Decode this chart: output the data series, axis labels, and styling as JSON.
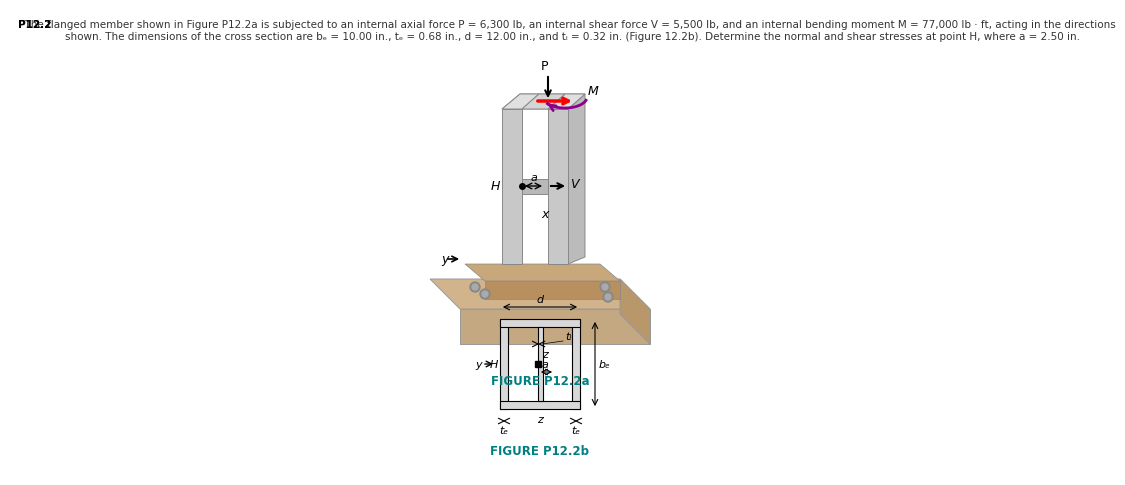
{
  "title_bold": "P12.2",
  "title_text": "  The flanged member shown in Figure P12.2a is subjected to an internal axial force P = 6,300 lb, an internal shear force V = 5,500 lb, and an internal bending moment M = 77,000 lb · ft, acting in the directions",
  "title_line2": "shown. The dimensions of the cross section are bₑ = 10.00 in., tₑ = 0.68 in., d = 12.00 in., and tₗ = 0.32 in. (Figure 12.2b). Determine the normal and shear stresses at point H, where a = 2.50 in.",
  "fig_label_a": "FIGURE P12.2a",
  "fig_label_b": "FIGURE P12.2b",
  "teal_color": "#008080",
  "blue_link_color": "#4169E1",
  "text_color": "#333333",
  "bg_color": "#ffffff"
}
